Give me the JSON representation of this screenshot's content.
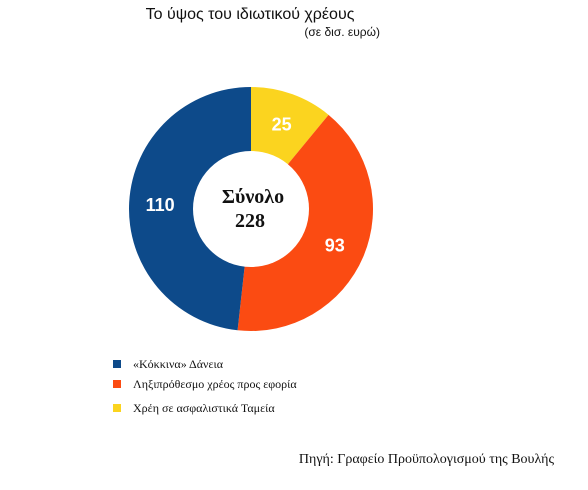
{
  "chart_data": {
    "type": "pie",
    "title": "Το ύψος του ιδιωτικού χρέους",
    "subtitle": "(σε δισ. ευρώ)",
    "center_label": "Σύνολο",
    "total": 228,
    "slices": [
      {
        "label": "«Κόκκινα» Δάνεια",
        "value": 110,
        "color": "#0d4a8a"
      },
      {
        "label": "Ληξιπρόθεσμο χρέος προς εφορία",
        "value": 93,
        "color": "#fb4b12"
      },
      {
        "label": "Χρέη σε ασφαλιστικά Ταμεία",
        "value": 25,
        "color": "#fbd41f"
      }
    ],
    "legend_position": "bottom-left"
  },
  "source": "Πηγή: Γραφείο Προϋπολογισμού της Βουλής"
}
